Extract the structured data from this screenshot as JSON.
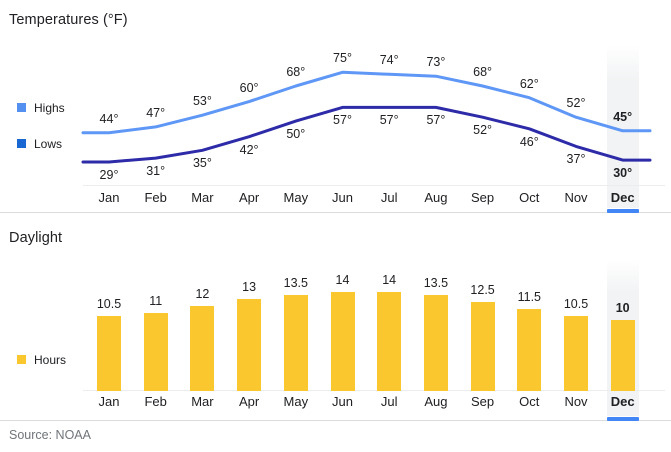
{
  "source_text": "Source: NOAA",
  "colors": {
    "highs_line": "#5E97F6",
    "lows_line": "#2D2BA8",
    "highs_legend": "#5490F0",
    "lows_legend": "#1967D2",
    "bar_yellow": "#FBC72F",
    "selected_band": "#F1F3F4",
    "selected_underline": "#4285F4",
    "divider": "#DADCE0",
    "axis_line": "#ECEDEE",
    "text_primary": "#202124",
    "text_secondary": "#70757A"
  },
  "chart_data": [
    {
      "type": "line",
      "title": "Temperatures (°F)",
      "categories": [
        "Jan",
        "Feb",
        "Mar",
        "Apr",
        "May",
        "Jun",
        "Jul",
        "Aug",
        "Sep",
        "Oct",
        "Nov",
        "Dec"
      ],
      "series": [
        {
          "name": "Highs",
          "values": [
            44,
            47,
            53,
            60,
            68,
            75,
            74,
            73,
            68,
            62,
            52,
            45
          ],
          "color": "#5E97F6",
          "legend_color": "#5490F0"
        },
        {
          "name": "Lows",
          "values": [
            29,
            31,
            35,
            42,
            50,
            57,
            57,
            57,
            52,
            46,
            37,
            30
          ],
          "color": "#2D2BA8",
          "legend_color": "#1967D2"
        }
      ],
      "unit_suffix": "°",
      "ylabel": "",
      "grid": false,
      "legend_position": "left",
      "highlighted_category": "Dec",
      "value_labels": "shown above highs and below lows"
    },
    {
      "type": "bar",
      "title": "Daylight",
      "categories": [
        "Jan",
        "Feb",
        "Mar",
        "Apr",
        "May",
        "Jun",
        "Jul",
        "Aug",
        "Sep",
        "Oct",
        "Nov",
        "Dec"
      ],
      "series": [
        {
          "name": "Hours",
          "values": [
            10.5,
            11,
            12,
            13,
            13.5,
            14,
            14,
            13.5,
            12.5,
            11.5,
            10.5,
            10
          ],
          "color": "#FBC72F",
          "legend_color": "#FBC72F"
        }
      ],
      "unit_suffix": "",
      "ylabel": "",
      "grid": false,
      "legend_position": "left",
      "highlighted_category": "Dec",
      "value_labels": "shown above bars"
    }
  ]
}
